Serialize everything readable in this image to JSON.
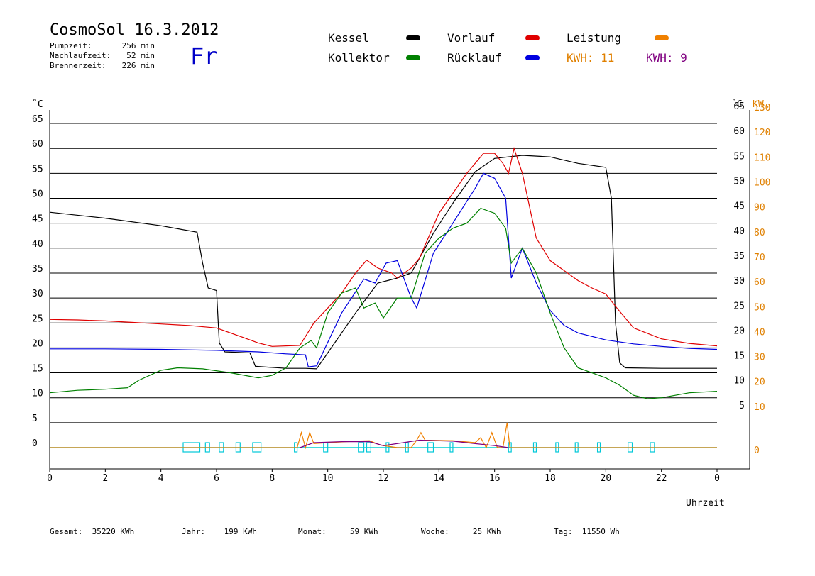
{
  "header": {
    "title": "CosmoSol 16.3.2012",
    "day": "Fr",
    "stats": [
      {
        "label": "Pumpzeit:",
        "value": "256 min"
      },
      {
        "label": "Nachlaufzeit:",
        "value": "52 min"
      },
      {
        "label": "Brennerzeit:",
        "value": "226 min"
      }
    ]
  },
  "legend": [
    {
      "label": "Kessel",
      "color": "#000000"
    },
    {
      "label": "Vorlauf",
      "color": "#e00000"
    },
    {
      "label": "Leistung",
      "color": "#f08000"
    },
    {
      "label": "Kollektor",
      "color": "#008000"
    },
    {
      "label": "Rücklauf",
      "color": "#0000e0"
    }
  ],
  "kwh": [
    {
      "text": "KWH: 11",
      "color": "#e08000"
    },
    {
      "text": "KWH: 9",
      "color": "#800080"
    }
  ],
  "axes": {
    "left_unit": "˚C",
    "right_unit_temp": "˚C",
    "right_unit_power": "KW",
    "xlabel": "Uhrzeit"
  },
  "footer": [
    {
      "label": "Gesamt:",
      "value": "35220 KWh"
    },
    {
      "label": "Jahr:",
      "value": "199 KWh"
    },
    {
      "label": "Monat:",
      "value": "59 KWh"
    },
    {
      "label": "Woche:",
      "value": "25 KWh"
    },
    {
      "label": "Tag:",
      "value": "11550 Wh"
    }
  ],
  "chart_data": {
    "type": "line",
    "xlabel": "Uhrzeit",
    "xlim": [
      0,
      24
    ],
    "ylim": [
      0,
      65
    ],
    "x_ticks": [
      "0",
      "2",
      "4",
      "6",
      "8",
      "10",
      "12",
      "14",
      "16",
      "18",
      "20",
      "22",
      "0"
    ],
    "y_ticks_left": [
      "0",
      "5",
      "10",
      "15",
      "20",
      "25",
      "30",
      "35",
      "40",
      "45",
      "50",
      "55",
      "60",
      "65"
    ],
    "y_ticks_right_temp": [
      "5",
      "10",
      "15",
      "20",
      "25",
      "30",
      "35",
      "40",
      "45",
      "50",
      "55",
      "60",
      "65"
    ],
    "y_ticks_right_power": [
      "0",
      "10",
      "20",
      "30",
      "40",
      "50",
      "60",
      "70",
      "80",
      "90",
      "100",
      "110",
      "120",
      "130"
    ],
    "grid": true,
    "legend_position": "top",
    "series": [
      {
        "name": "Kessel",
        "color": "#000000",
        "points": [
          [
            0,
            47.2
          ],
          [
            2,
            46
          ],
          [
            4,
            44.5
          ],
          [
            5.3,
            43.2
          ],
          [
            5.5,
            37
          ],
          [
            5.7,
            32
          ],
          [
            6,
            31.5
          ],
          [
            6.1,
            21
          ],
          [
            6.3,
            19.2
          ],
          [
            7.2,
            19
          ],
          [
            7.4,
            16.3
          ],
          [
            8.5,
            15.9
          ],
          [
            9.2,
            15.9
          ],
          [
            9.6,
            15.8
          ],
          [
            10,
            19
          ],
          [
            11,
            27
          ],
          [
            11.8,
            33
          ],
          [
            12.5,
            34
          ],
          [
            13,
            35
          ],
          [
            13.8,
            43
          ],
          [
            14.5,
            49
          ],
          [
            15.3,
            55.3
          ],
          [
            16,
            58
          ],
          [
            17,
            58.6
          ],
          [
            18,
            58.3
          ],
          [
            19,
            57
          ],
          [
            20,
            56.2
          ],
          [
            20.2,
            50
          ],
          [
            20.35,
            25
          ],
          [
            20.5,
            17
          ],
          [
            20.7,
            16
          ],
          [
            22,
            15.9
          ],
          [
            24,
            15.9
          ]
        ]
      },
      {
        "name": "Vorlauf",
        "color": "#e00000",
        "points": [
          [
            0,
            25.7
          ],
          [
            1,
            25.6
          ],
          [
            2,
            25.4
          ],
          [
            3,
            25.1
          ],
          [
            4,
            24.8
          ],
          [
            5,
            24.5
          ],
          [
            6,
            24
          ],
          [
            6.5,
            23
          ],
          [
            7,
            22
          ],
          [
            7.5,
            21
          ],
          [
            8,
            20.3
          ],
          [
            9,
            20.5
          ],
          [
            9.5,
            25
          ],
          [
            10,
            28
          ],
          [
            10.5,
            31
          ],
          [
            11,
            35
          ],
          [
            11.4,
            37.6
          ],
          [
            11.8,
            36
          ],
          [
            12.3,
            35
          ],
          [
            12.5,
            34
          ],
          [
            13,
            36
          ],
          [
            13.3,
            38
          ],
          [
            14,
            47
          ],
          [
            15,
            55
          ],
          [
            15.3,
            57
          ],
          [
            15.6,
            59
          ],
          [
            16,
            59
          ],
          [
            16.3,
            57
          ],
          [
            16.5,
            55
          ],
          [
            16.7,
            60
          ],
          [
            17,
            55
          ],
          [
            17.5,
            42
          ],
          [
            18,
            37.5
          ],
          [
            19,
            33.5
          ],
          [
            19.5,
            32
          ],
          [
            20,
            30.8
          ],
          [
            20.4,
            28
          ],
          [
            21,
            24
          ],
          [
            22,
            21.8
          ],
          [
            23,
            20.9
          ],
          [
            24,
            20.4
          ]
        ]
      },
      {
        "name": "Rücklauf",
        "color": "#0000e0",
        "points": [
          [
            0,
            19.8
          ],
          [
            2,
            19.8
          ],
          [
            4,
            19.7
          ],
          [
            6,
            19.5
          ],
          [
            7.5,
            19.2
          ],
          [
            8.5,
            18.8
          ],
          [
            9.2,
            18.6
          ],
          [
            9.3,
            16.2
          ],
          [
            9.6,
            16.4
          ],
          [
            10.5,
            27
          ],
          [
            11.3,
            33.8
          ],
          [
            11.7,
            33
          ],
          [
            12.1,
            37
          ],
          [
            12.5,
            37.5
          ],
          [
            13,
            30
          ],
          [
            13.2,
            28
          ],
          [
            13.8,
            39
          ],
          [
            14.5,
            45
          ],
          [
            15.3,
            52
          ],
          [
            15.6,
            55
          ],
          [
            16,
            54
          ],
          [
            16.4,
            50
          ],
          [
            16.6,
            34
          ],
          [
            17,
            40
          ],
          [
            17.5,
            33
          ],
          [
            18,
            27.5
          ],
          [
            18.5,
            24.5
          ],
          [
            19,
            23
          ],
          [
            20,
            21.6
          ],
          [
            21,
            20.8
          ],
          [
            22,
            20.3
          ],
          [
            23,
            19.9
          ],
          [
            24,
            19.7
          ]
        ]
      },
      {
        "name": "Kollektor",
        "color": "#008000",
        "points": [
          [
            0,
            11
          ],
          [
            1,
            11.5
          ],
          [
            2,
            11.7
          ],
          [
            2.8,
            12
          ],
          [
            3.2,
            13.5
          ],
          [
            4,
            15.5
          ],
          [
            4.6,
            16
          ],
          [
            5.5,
            15.8
          ],
          [
            6.5,
            15
          ],
          [
            7.5,
            14
          ],
          [
            8,
            14.5
          ],
          [
            8.5,
            16
          ],
          [
            9,
            20
          ],
          [
            9.4,
            21.5
          ],
          [
            9.6,
            20
          ],
          [
            10,
            27
          ],
          [
            10.5,
            31
          ],
          [
            11,
            32
          ],
          [
            11.3,
            28
          ],
          [
            11.7,
            29
          ],
          [
            12,
            26
          ],
          [
            12.5,
            30
          ],
          [
            13,
            30
          ],
          [
            13.5,
            39
          ],
          [
            14,
            42
          ],
          [
            14.5,
            44
          ],
          [
            15,
            45
          ],
          [
            15.5,
            48
          ],
          [
            16,
            47
          ],
          [
            16.4,
            44
          ],
          [
            16.6,
            37
          ],
          [
            17,
            40
          ],
          [
            17.5,
            35
          ],
          [
            18,
            27
          ],
          [
            18.5,
            20
          ],
          [
            19,
            16
          ],
          [
            20,
            14
          ],
          [
            20.5,
            12.5
          ],
          [
            21,
            10.5
          ],
          [
            21.5,
            9.8
          ],
          [
            22,
            10
          ],
          [
            23,
            11
          ],
          [
            24,
            11.3
          ]
        ]
      },
      {
        "name": "Leistung",
        "color": "#f08000",
        "points": [
          [
            0,
            0
          ],
          [
            8.9,
            0
          ],
          [
            9.05,
            3
          ],
          [
            9.2,
            0
          ],
          [
            9.35,
            3
          ],
          [
            9.5,
            0.8
          ],
          [
            10,
            1
          ],
          [
            11,
            1.3
          ],
          [
            11.5,
            1.4
          ],
          [
            11.9,
            0.5
          ],
          [
            12.5,
            0
          ],
          [
            13,
            0
          ],
          [
            13.2,
            1.5
          ],
          [
            13.35,
            3
          ],
          [
            13.5,
            1.5
          ],
          [
            14.5,
            1.4
          ],
          [
            15.3,
            1
          ],
          [
            15.5,
            2
          ],
          [
            15.7,
            0
          ],
          [
            15.9,
            3
          ],
          [
            16.1,
            0
          ],
          [
            16.3,
            0
          ],
          [
            16.45,
            5
          ],
          [
            16.55,
            0
          ],
          [
            17,
            0
          ],
          [
            24,
            0
          ]
        ]
      },
      {
        "name": "Leistung (KWH 9)",
        "color": "#800080",
        "points": [
          [
            9,
            0
          ],
          [
            9.5,
            1
          ],
          [
            10.5,
            1.2
          ],
          [
            11.5,
            1.2
          ],
          [
            12,
            0.4
          ],
          [
            13.3,
            1.5
          ],
          [
            14.5,
            1.3
          ],
          [
            15.3,
            0.8
          ],
          [
            16,
            0.4
          ],
          [
            16.5,
            0
          ]
        ]
      }
    ],
    "pump_intervals": [
      [
        4.8,
        5.4
      ],
      [
        5.6,
        5.75
      ],
      [
        6.1,
        6.25
      ],
      [
        6.7,
        6.85
      ],
      [
        7.3,
        7.6
      ],
      [
        8.8,
        8.9
      ],
      [
        9.85,
        10
      ],
      [
        11.1,
        11.3
      ],
      [
        11.4,
        11.55
      ],
      [
        12.1,
        12.2
      ],
      [
        12.8,
        12.9
      ],
      [
        13.6,
        13.8
      ],
      [
        14.4,
        14.5
      ],
      [
        16.5,
        16.6
      ],
      [
        17.4,
        17.5
      ],
      [
        18.2,
        18.3
      ],
      [
        18.9,
        19
      ],
      [
        19.7,
        19.8
      ],
      [
        20.8,
        20.95
      ],
      [
        21.6,
        21.75
      ]
    ]
  }
}
